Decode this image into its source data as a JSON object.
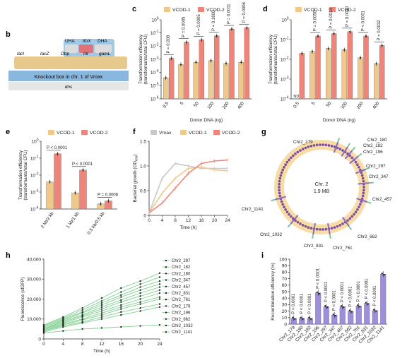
{
  "colors": {
    "vcod1": "#f0c98a",
    "vcod2": "#ef8579",
    "vmax": "#c8c8c8",
    "panel_h": "#7fd08f",
    "bar_i": "#9f8fd8",
    "ring": "#f7dca6",
    "dot": "#7a4fa0",
    "mark": "#8a6cc0"
  },
  "panels": {
    "b": "b",
    "c": "c",
    "d": "d",
    "e": "e",
    "f": "f",
    "g": "g",
    "h": "h",
    "i": "i"
  },
  "b": {
    "uha": "UHA",
    "tfox": "tfoX",
    "dha": "DHA",
    "genes": [
      "lacI",
      "lacZ",
      "Dtrp",
      "int",
      "gamL"
    ],
    "knockout_label": "Knockout box in chr. 1 of Vmax",
    "dns": "dns"
  },
  "legend": {
    "vcod1": "VCOD-1",
    "vcod2": "VCOD-2",
    "vmax": "Vmax"
  },
  "chart_data": [
    {
      "panel": "c",
      "type": "bar",
      "title": "",
      "xlabel": "Donor DNA (ng)",
      "ylabel": "Transformation efficiency (transformants/total CFU)",
      "yscale": "log",
      "ylim": [
        1e-06,
        1
      ],
      "yticks": [
        "10^-6",
        "10^-5",
        "10^-4",
        "10^-3",
        "10^-2",
        "10^-1",
        "10^0"
      ],
      "categories": [
        "0.5",
        "5",
        "50",
        "100",
        "200",
        "400"
      ],
      "series": [
        {
          "name": "VCOD-1",
          "values": [
            4e-05,
            0.0004,
            0.0006,
            0.0008,
            0.0005,
            0.0006
          ]
        },
        {
          "name": "VCOD-2",
          "values": [
            0.0012,
            0.02,
            0.03,
            0.06,
            0.2,
            0.25
          ]
        }
      ],
      "p_values": [
        "P = 0.008",
        "P = 0.0005",
        "P = 0.0005",
        "P = 0.1600",
        "P = 0.0011",
        "P = 0.0006"
      ]
    },
    {
      "panel": "d",
      "type": "bar",
      "xlabel": "Donor DNA (ng)",
      "ylabel": "Transformation efficiency (transformants/total CFU)",
      "yscale": "log",
      "ylim": [
        0.0001,
        1
      ],
      "yticks": [
        "10^-4",
        "10^-3",
        "10^-2",
        "10^-1",
        "10^0"
      ],
      "categories": [
        "0.5",
        "5",
        "50",
        "100",
        "200",
        "400"
      ],
      "annotations": [
        "ND"
      ],
      "series": [
        {
          "name": "VCOD-1",
          "values": [
            null,
            0.025,
            0.035,
            0.03,
            0.012,
            0.006
          ]
        },
        {
          "name": "VCOD-2",
          "values": [
            0.02,
            0.15,
            0.2,
            0.25,
            0.15,
            0.05
          ]
        }
      ],
      "p_values": [
        "P = 0.0050",
        "P = 0.0013",
        "P = 0.0010",
        "P < 0.0001",
        "P = 0.0032"
      ]
    },
    {
      "panel": "e",
      "type": "bar",
      "ylabel": "Transformation efficiency (transformants/total CFU)",
      "yscale": "log",
      "ylim": [
        0.0001,
        1
      ],
      "yticks": [
        "10^-4",
        "10^-3",
        "10^-2",
        "10^-1",
        "10^0"
      ],
      "categories": [
        "2 kb/2 kb",
        "1 kb/1 kb",
        "0.5 kb/0.5 kb"
      ],
      "series": [
        {
          "name": "VCOD-1",
          "values": [
            0.004,
            0.0009,
            0.0002
          ]
        },
        {
          "name": "VCOD-2",
          "values": [
            0.18,
            0.02,
            0.0003
          ]
        }
      ],
      "p_values": [
        "P < 0.0001",
        "P < 0.0001",
        "P = 0.0006"
      ]
    },
    {
      "panel": "f",
      "type": "line",
      "xlabel": "Time (h)",
      "ylabel": "Bacterial growth (OD600)",
      "xlim": [
        0,
        24
      ],
      "ylim": [
        0,
        1.5
      ],
      "xticks": [
        0,
        4,
        8,
        12,
        16,
        20,
        24
      ],
      "yticks": [
        "0",
        "0.5",
        "1.0",
        "1.5"
      ],
      "x": [
        0,
        4,
        8,
        12,
        16,
        20,
        24
      ],
      "series": [
        {
          "name": "Vmax",
          "values": [
            0.05,
            0.75,
            1.05,
            1.0,
            0.95,
            0.95,
            0.95
          ]
        },
        {
          "name": "VCOD-1",
          "values": [
            0.05,
            0.45,
            0.75,
            0.95,
            0.98,
            0.92,
            0.9
          ]
        },
        {
          "name": "VCOD-2",
          "values": [
            0.05,
            0.25,
            0.55,
            0.85,
            1.05,
            1.1,
            1.12
          ]
        }
      ]
    },
    {
      "panel": "g",
      "type": "other",
      "center_title": "Chr. 2",
      "center_subtitle": "1.9 MB",
      "sites": [
        {
          "label": "Chr2_179"
        },
        {
          "label": "Chr2_180"
        },
        {
          "label": "Chr2_182"
        },
        {
          "label": "Chr2_196"
        },
        {
          "label": "Chr2_297"
        },
        {
          "label": "Chr2_347"
        },
        {
          "label": "Chr2_457"
        },
        {
          "label": "Chr2_662"
        },
        {
          "label": "Chr2_761"
        },
        {
          "label": "Chr2_831"
        },
        {
          "label": "Chr2_1032"
        },
        {
          "label": "Chr2_1141"
        }
      ]
    },
    {
      "panel": "h",
      "type": "line",
      "xlabel": "Time (h)",
      "ylabel": "Fluorescence (sfGFP)",
      "xlim": [
        0,
        24
      ],
      "ylim": [
        0,
        40000
      ],
      "xticks": [
        0,
        4,
        8,
        12,
        16,
        20,
        24
      ],
      "yticks": [
        "0",
        "10,000",
        "20,000",
        "30,000",
        "40,000"
      ],
      "x": [
        0,
        4,
        8,
        12,
        16,
        20,
        24
      ],
      "legend_entries": [
        "Chr2_297",
        "Chr2_182",
        "Chr2_180",
        "Chr2_347",
        "Chr2_457",
        "Chr2_831",
        "Chr2_761",
        "Chr2_179",
        "Chr2_196",
        "Chr2_662",
        "Chr2_1032",
        "Chr2_1141"
      ],
      "series": [
        {
          "name": "Chr2_297",
          "values": [
            7000,
            11000,
            15500,
            20500,
            25500,
            29000,
            33000
          ]
        },
        {
          "name": "Chr2_182",
          "values": [
            6500,
            10500,
            14500,
            19000,
            23500,
            27500,
            31000
          ]
        },
        {
          "name": "Chr2_180",
          "values": [
            6000,
            10000,
            13500,
            18000,
            22000,
            26000,
            29000
          ]
        },
        {
          "name": "Chr2_347",
          "values": [
            5500,
            9500,
            13000,
            17000,
            21000,
            24500,
            27500
          ]
        },
        {
          "name": "Chr2_457",
          "values": [
            5000,
            9000,
            12000,
            16000,
            19500,
            23000,
            26000
          ]
        },
        {
          "name": "Chr2_831",
          "values": [
            5000,
            8500,
            11500,
            15000,
            18500,
            21500,
            24500
          ]
        },
        {
          "name": "Chr2_761",
          "values": [
            4500,
            8000,
            11000,
            14000,
            17000,
            20000,
            23000
          ]
        },
        {
          "name": "Chr2_179",
          "values": [
            4500,
            7500,
            10000,
            13000,
            16000,
            18500,
            21000
          ]
        },
        {
          "name": "Chr2_196",
          "values": [
            4000,
            7000,
            9500,
            12000,
            15000,
            17500,
            20000
          ]
        },
        {
          "name": "Chr2_662",
          "values": [
            4000,
            6500,
            8500,
            11000,
            13500,
            15500,
            17500
          ]
        },
        {
          "name": "Chr2_1032",
          "values": [
            3500,
            6000,
            8000,
            10000,
            12000,
            14000,
            16000
          ]
        },
        {
          "name": "Chr2_1141",
          "values": [
            3000,
            4000,
            5000,
            5500,
            6000,
            6500,
            7000
          ]
        }
      ]
    },
    {
      "panel": "i",
      "type": "bar",
      "ylabel": "Recombination efficiency (%)",
      "ylim": [
        0,
        100
      ],
      "yticks": [
        "0",
        "10",
        "20",
        "30",
        "40",
        "50",
        "60",
        "70",
        "80",
        "90",
        "100"
      ],
      "categories": [
        "Chr2_179",
        "Chr2_180",
        "Chr2_182",
        "Chr2_196",
        "Chr2_297",
        "Chr2_347",
        "Chr2_457",
        "Chr2_662",
        "Chr2_761",
        "Chr2_831",
        "Chr2_1032",
        "Chr2_1141"
      ],
      "values": [
        9,
        9,
        9,
        48,
        27,
        14,
        27,
        20,
        28,
        32,
        21,
        77
      ],
      "p_values": [
        "P < 0.0001",
        "P < 0.0001",
        "P < 0.0001",
        "P < 0.0001",
        "P < 0.0001",
        "P < 0.0001",
        "P < 0.0001",
        "P < 0.0001",
        "P < 0.0001",
        "P < 0.0001",
        "P < 0.0001"
      ]
    }
  ]
}
